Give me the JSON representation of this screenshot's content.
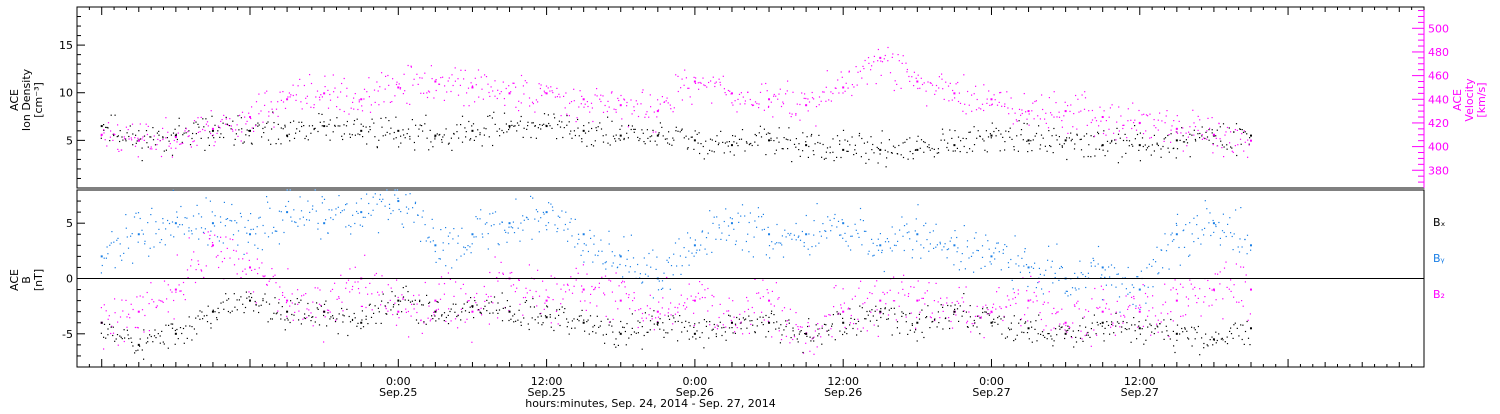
{
  "chart_data": [
    {
      "type": "scatter",
      "panel": "top",
      "ylabel_left": [
        "ACE",
        "Ion Density",
        "[cm⁻³]"
      ],
      "ylabel_right": [
        "ACE",
        "Velocity",
        "[km/s]"
      ],
      "left_axis": {
        "ylim": [
          0,
          19
        ],
        "ticks": [
          5,
          10,
          15
        ]
      },
      "right_axis": {
        "ylim": [
          365,
          518
        ],
        "ticks": [
          380,
          400,
          420,
          440,
          460,
          480,
          500
        ]
      },
      "grid": false,
      "series": [
        {
          "axis": "left",
          "color": "#000000",
          "x": [
            -24,
            -21,
            -18,
            -15,
            -12,
            -9,
            -6,
            -3,
            0,
            3,
            6,
            9,
            12,
            15,
            18,
            21,
            24,
            27,
            30,
            33,
            36,
            39,
            42,
            45,
            48,
            51,
            54,
            57,
            60,
            63,
            66,
            69
          ],
          "y": [
            6.5,
            5,
            5.5,
            6,
            6,
            5.5,
            6.5,
            6,
            6,
            5.5,
            6,
            6.5,
            6.5,
            6,
            5.5,
            5.5,
            5,
            4.5,
            5,
            4.5,
            4,
            4,
            4,
            4.5,
            5.5,
            5,
            5,
            4.5,
            4.5,
            5,
            5.5,
            5.5
          ]
        },
        {
          "axis": "right",
          "color": "#ff00ff",
          "x": [
            -24,
            -21,
            -18,
            -15,
            -12,
            -9,
            -6,
            -3,
            0,
            3,
            6,
            9,
            12,
            15,
            18,
            21,
            24,
            27,
            30,
            33,
            36,
            39,
            42,
            45,
            48,
            51,
            54,
            57,
            60,
            63,
            66,
            69
          ],
          "y": [
            410,
            405,
            408,
            415,
            425,
            440,
            445,
            440,
            450,
            455,
            450,
            445,
            445,
            440,
            435,
            430,
            455,
            445,
            440,
            435,
            450,
            475,
            455,
            445,
            440,
            430,
            430,
            425,
            420,
            415,
            410,
            405
          ]
        }
      ]
    },
    {
      "type": "scatter",
      "panel": "bottom",
      "ylabel_left": [
        "ACE",
        "B",
        "[nT]"
      ],
      "left_axis": {
        "ylim": [
          -8,
          8
        ],
        "ticks": [
          -5,
          0,
          5
        ]
      },
      "zero_line": true,
      "grid": false,
      "legend": [
        "Bₓ",
        "Bᵧ",
        "B₂"
      ],
      "series": [
        {
          "name": "Bₓ",
          "color": "#000000",
          "x": [
            -24,
            -21,
            -18,
            -15,
            -12,
            -9,
            -6,
            -3,
            0,
            3,
            6,
            9,
            12,
            15,
            18,
            21,
            24,
            27,
            30,
            33,
            36,
            39,
            42,
            45,
            48,
            51,
            54,
            57,
            60,
            63,
            66,
            69
          ],
          "y": [
            -4,
            -6,
            -5,
            -3,
            -2,
            -3,
            -3,
            -4,
            -2,
            -3,
            -2.5,
            -3,
            -3.5,
            -4,
            -5,
            -4,
            -5,
            -4,
            -4,
            -5,
            -4,
            -3,
            -4,
            -3,
            -4,
            -4.5,
            -5,
            -4,
            -4.5,
            -5,
            -5.5,
            -4.5
          ]
        },
        {
          "name": "Bᵧ",
          "color": "#1a7fe6",
          "x": [
            -24,
            -21,
            -18,
            -15,
            -12,
            -9,
            -6,
            -3,
            0,
            3,
            6,
            9,
            12,
            15,
            18,
            21,
            24,
            27,
            30,
            33,
            36,
            39,
            42,
            45,
            48,
            51,
            54,
            57,
            60,
            63,
            66,
            69
          ],
          "y": [
            2,
            4,
            5,
            5,
            4,
            6,
            5,
            6,
            7,
            3,
            4,
            5,
            6,
            4,
            2,
            0,
            3,
            5,
            4,
            4,
            5,
            3,
            4,
            3,
            2,
            1,
            0,
            1,
            -1,
            4,
            5,
            3
          ]
        },
        {
          "name": "B₂",
          "color": "#ff00ff",
          "x": [
            -24,
            -21,
            -18,
            -15,
            -12,
            -9,
            -6,
            -3,
            0,
            3,
            6,
            9,
            12,
            15,
            18,
            21,
            24,
            27,
            30,
            33,
            36,
            39,
            42,
            45,
            48,
            51,
            54,
            57,
            60,
            63,
            66,
            69
          ],
          "y": [
            -4,
            -3,
            -1,
            3,
            1,
            -2,
            -3,
            0,
            -3,
            -2,
            -3,
            0,
            -2,
            -1,
            -2,
            -3,
            -2,
            -4,
            -2,
            -5,
            -3,
            -2,
            -2,
            -3,
            -3,
            -2,
            -4,
            -3,
            -3,
            -2,
            -1,
            -1
          ]
        }
      ]
    }
  ],
  "x_axis": {
    "range_hours": [
      -26,
      83
    ],
    "ticks": [
      {
        "hour": 0,
        "line1": "0:00",
        "line2": "Sep.25"
      },
      {
        "hour": 12,
        "line1": "12:00",
        "line2": "Sep.25"
      },
      {
        "hour": 24,
        "line1": "0:00",
        "line2": "Sep.26"
      },
      {
        "hour": 36,
        "line1": "12:00",
        "line2": "Sep.26"
      },
      {
        "hour": 48,
        "line1": "0:00",
        "line2": "Sep.27"
      },
      {
        "hour": 60,
        "line1": "12:00",
        "line2": "Sep.27"
      }
    ],
    "xlabel": "hours:minutes, Sep. 24, 2014 - Sep. 27, 2014"
  }
}
